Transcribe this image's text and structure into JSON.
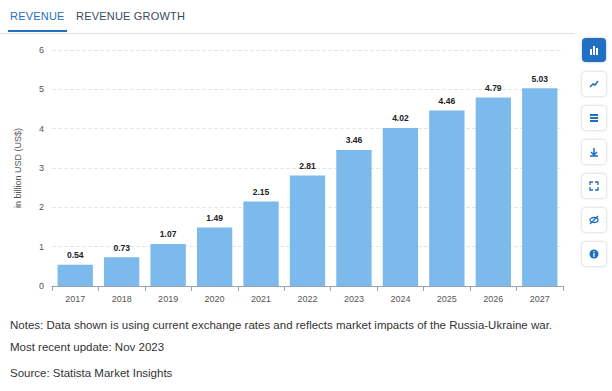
{
  "chart_data": {
    "type": "bar",
    "y_label": "in billion USD (US$)",
    "categories": [
      "2017",
      "2018",
      "2019",
      "2020",
      "2021",
      "2022",
      "2023",
      "2024",
      "2025",
      "2026",
      "2027"
    ],
    "values": [
      0.54,
      0.73,
      1.07,
      1.49,
      2.15,
      2.81,
      3.46,
      4.02,
      4.46,
      4.79,
      5.03
    ],
    "color": "#7cb9ec",
    "ylim": [
      0,
      6
    ],
    "yticks": [
      0,
      1,
      2,
      3,
      4,
      5,
      6
    ],
    "grid": true,
    "data_labels": true
  },
  "page": {
    "tabs": [
      "REVENUE",
      "REVENUE GROWTH"
    ],
    "notes": [
      "Notes: Data shown is using current exchange rates and reflects market impacts of the Russia-Ukraine war.",
      "Most recent update: Nov 2023",
      "Source: Statista Market Insights"
    ]
  }
}
